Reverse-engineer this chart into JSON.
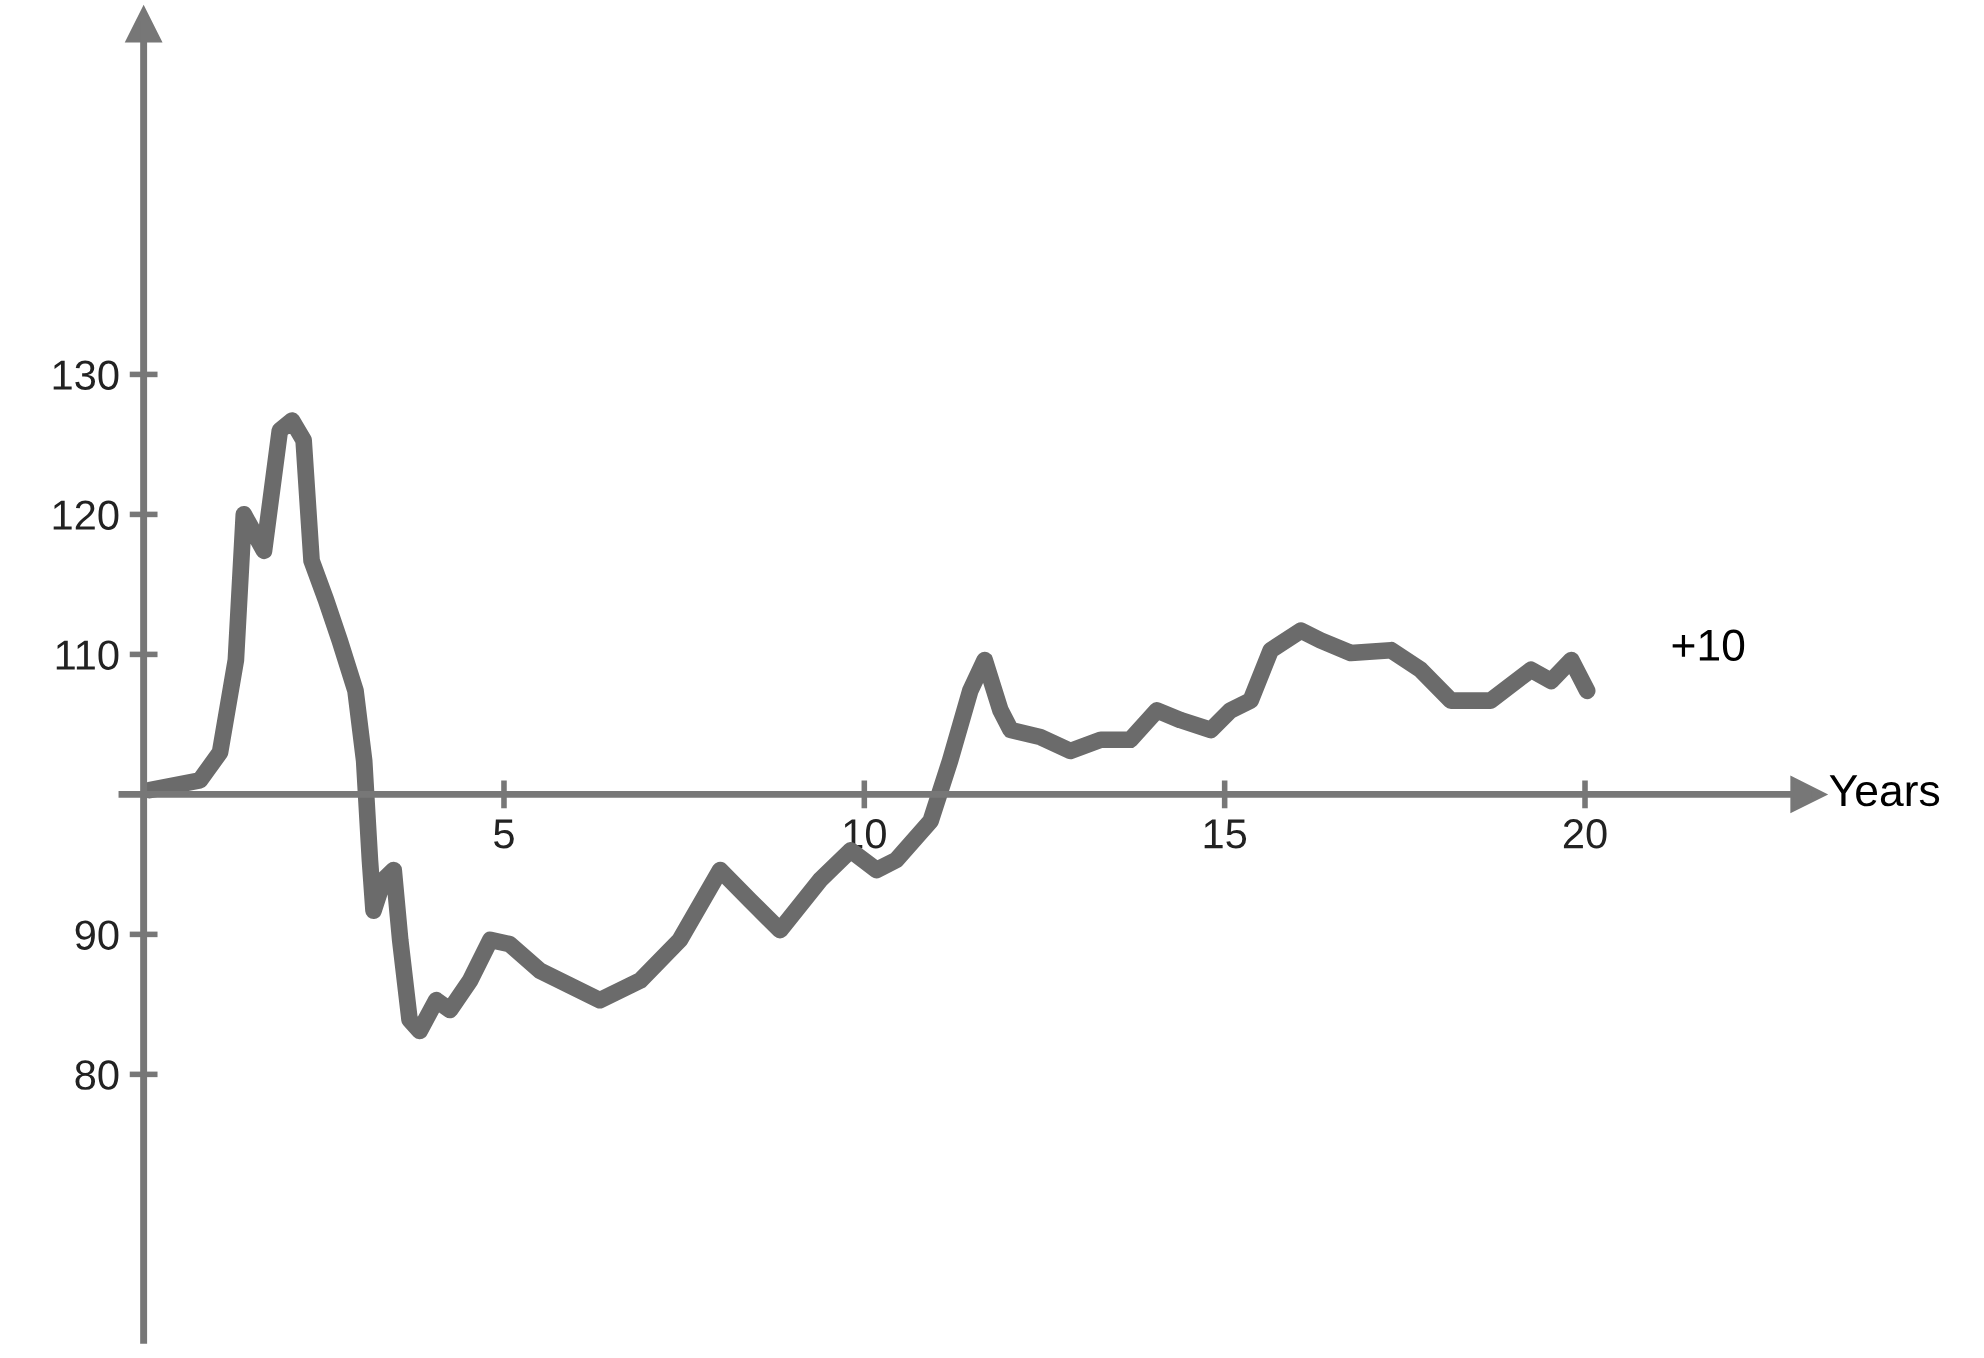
{
  "chart_data": {
    "type": "line",
    "xlabel": "Years",
    "annotations": [
      "+10"
    ],
    "x": [
      0.08,
      0.78,
      1.06,
      1.28,
      1.39,
      1.67,
      1.89,
      2.06,
      2.22,
      2.33,
      2.53,
      2.72,
      2.94,
      3.06,
      3.14,
      3.19,
      3.33,
      3.47,
      3.56,
      3.69,
      3.83,
      4.06,
      4.25,
      4.53,
      4.81,
      5.08,
      5.5,
      6.33,
      6.89,
      7.44,
      8.0,
      8.42,
      8.83,
      9.39,
      9.81,
      10.17,
      10.44,
      10.92,
      11.19,
      11.47,
      11.67,
      11.89,
      12.03,
      12.44,
      12.86,
      13.28,
      13.69,
      14.06,
      14.39,
      14.81,
      15.08,
      15.36,
      15.64,
      16.06,
      16.33,
      16.75,
      17.31,
      17.72,
      18.14,
      18.69,
      19.25,
      19.53,
      19.81,
      20.03
    ],
    "series": [
      {
        "color": "#6b6b6b",
        "values": [
          100.3,
          101,
          103,
          109.6,
          120,
          117.4,
          126,
          126.7,
          125.3,
          116.7,
          113.9,
          111,
          107.4,
          102.4,
          95.3,
          91.7,
          93.9,
          94.6,
          89.6,
          83.9,
          83.1,
          85.3,
          84.6,
          86.7,
          89.6,
          89.3,
          87.4,
          85.3,
          86.7,
          89.6,
          94.6,
          92.4,
          90.3,
          93.9,
          96,
          94.6,
          95.3,
          98.1,
          102.4,
          107.4,
          109.6,
          106,
          104.6,
          104.1,
          103.1,
          103.9,
          103.9,
          106,
          105.3,
          104.6,
          106,
          106.7,
          110.3,
          111.7,
          111,
          110.1,
          110.3,
          108.9,
          106.7,
          106.7,
          108.9,
          108.1,
          109.6,
          107.4
        ]
      }
    ],
    "xlim": [
      -0.3,
      23.1
    ],
    "ylim": [
      61,
      155
    ],
    "xticks": [
      5,
      10,
      15,
      20
    ],
    "yticks": [
      80,
      90,
      110,
      120,
      130
    ],
    "grid": false,
    "legend": false,
    "marker": "none",
    "line_style": "solid"
  }
}
